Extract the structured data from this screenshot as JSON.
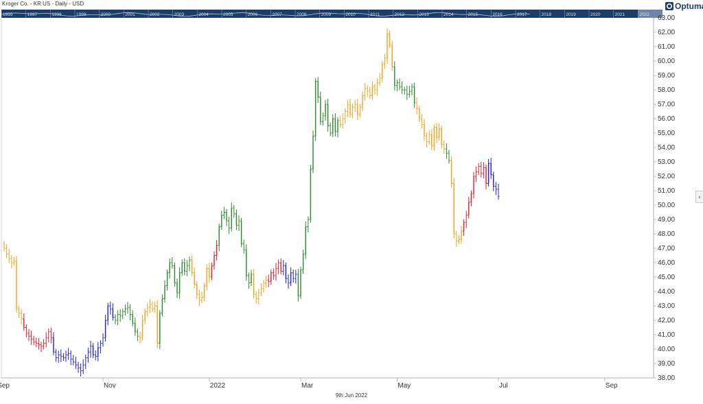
{
  "header": {
    "title": "Kroger Co. - KR:US - Daily - USD"
  },
  "navigator": {
    "years": [
      "1995",
      "1997",
      "1998",
      "1999",
      "2000",
      "2001",
      "2002",
      "2003",
      "2004",
      "2005",
      "2006",
      "2007",
      "2008",
      "2009",
      "2010",
      "2011",
      "2012",
      "2013",
      "2014",
      "2015",
      "2016",
      "2017",
      "2018",
      "2019",
      "2020",
      "2021",
      "2022"
    ],
    "highlighted": "2022"
  },
  "logo": {
    "text": "Optuma",
    "icon": "optuma-logo-icon"
  },
  "footer": {
    "date": "9th Jun 2022"
  },
  "collapse_panel": {
    "icon": "chevron-left-icon",
    "glyph": "‹"
  },
  "colors": {
    "navy": "#1a3d6b",
    "blue": "#1f1fd8",
    "red": "#e21b2c",
    "orange": "#f2a21a",
    "green": "#2b8a2b",
    "grid": "#cccccc"
  },
  "chart_data": {
    "type": "ohlc",
    "ylim": [
      38.0,
      63.0
    ],
    "yticks": [
      "38.00",
      "39.00",
      "40.00",
      "41.00",
      "42.00",
      "43.00",
      "44.00",
      "45.00",
      "46.00",
      "47.00",
      "48.00",
      "49.00",
      "50.00",
      "51.00",
      "52.00",
      "53.00",
      "54.00",
      "55.00",
      "56.00",
      "57.00",
      "58.00",
      "59.00",
      "60.00",
      "61.00",
      "62.00",
      "63.00"
    ],
    "x_tick_labels": [
      "Sep",
      "Nov",
      "2022",
      "Mar",
      "May",
      "Jul",
      "Sep"
    ],
    "x_tick_bar_index": [
      -3,
      40,
      83,
      120,
      159,
      200,
      243
    ],
    "grid": false,
    "legend": "none",
    "color_legend": [
      "blue",
      "red",
      "orange",
      "green"
    ],
    "segments": [
      {
        "color": "orange",
        "closes": [
          47.0,
          46.6,
          46.3,
          46.0,
          46.1,
          42.8,
          42.5,
          42.1
        ]
      },
      {
        "color": "red",
        "closes": [
          41.5,
          41.1,
          40.9,
          40.7,
          40.5,
          40.4,
          40.3,
          40.2,
          40.4,
          40.8,
          41.2,
          40.8
        ]
      },
      {
        "color": "blue",
        "closes": [
          39.8,
          39.4,
          39.6,
          39.5,
          39.4,
          39.6,
          39.7,
          39.3,
          39.1,
          38.9,
          38.7,
          38.5,
          38.9,
          39.4,
          39.8,
          40.2,
          39.6,
          39.5,
          40.1,
          40.4,
          40.8,
          42.0,
          43.0,
          42.8,
          42.2
        ]
      },
      {
        "color": "green",
        "closes": [
          42.0,
          42.4,
          42.3,
          42.6,
          42.8,
          42.9,
          42.4,
          41.8,
          41.2,
          40.9
        ]
      },
      {
        "color": "orange",
        "closes": [
          40.8,
          42.0,
          42.6,
          42.9,
          43.1,
          42.8,
          43.0,
          40.4
        ]
      },
      {
        "color": "green",
        "closes": [
          42.5,
          43.5,
          44.4,
          45.3,
          46.0,
          45.8,
          44.6,
          43.9,
          45.3,
          46.0,
          45.4,
          45.8,
          46.2
        ]
      },
      {
        "color": "orange",
        "closes": [
          45.3,
          44.5,
          43.8,
          43.4,
          43.6,
          44.4,
          45.6,
          45.0
        ]
      },
      {
        "color": "red",
        "closes": [
          45.8,
          46.5,
          47.2
        ]
      },
      {
        "color": "green",
        "closes": [
          48.5,
          49.3,
          49.5,
          48.9,
          48.4,
          49.8,
          49.4,
          48.6,
          48.9,
          47.3,
          46.9
        ]
      },
      {
        "color": "green",
        "closes": [
          45.1,
          44.6,
          45.2
        ]
      },
      {
        "color": "orange",
        "closes": [
          43.8,
          43.5,
          43.9,
          44.2,
          44.6,
          44.8
        ]
      },
      {
        "color": "red",
        "closes": [
          44.7,
          45.3,
          45.1,
          45.6,
          46.0,
          45.4
        ]
      },
      {
        "color": "blue",
        "closes": [
          45.8,
          44.9,
          44.6,
          45.3,
          44.9,
          45.2
        ]
      },
      {
        "color": "green",
        "closes": [
          43.7,
          45.5,
          46.6,
          48.5,
          49.0
        ]
      },
      {
        "color": "green",
        "closes": [
          52.5,
          54.8,
          58.6,
          57.5,
          55.8,
          56.2,
          57.0,
          55.5,
          55.0,
          56.0,
          55.1,
          55.9
        ]
      },
      {
        "color": "orange",
        "closes": [
          55.6,
          56.0,
          56.5,
          57.0,
          56.3,
          56.8,
          57.0,
          56.3,
          56.8,
          57.6,
          58.1,
          57.9,
          57.6,
          58.2,
          58.0,
          58.5,
          58.8,
          59.8,
          60.2,
          61.9,
          61.1,
          59.6
        ]
      },
      {
        "color": "green",
        "closes": [
          58.3,
          58.5,
          58.2,
          58.0,
          58.0,
          57.7,
          57.9,
          58.2,
          57.1
        ]
      },
      {
        "color": "orange",
        "closes": [
          56.7,
          56.0,
          55.6,
          54.8,
          54.4,
          54.9,
          54.1,
          55.4,
          54.7,
          55.3,
          54.2,
          53.9
        ]
      },
      {
        "color": "green",
        "closes": [
          53.6,
          53.1
        ]
      },
      {
        "color": "orange",
        "closes": [
          51.5,
          48.0,
          47.5,
          47.6,
          48.2
        ]
      },
      {
        "color": "red",
        "closes": [
          48.8,
          49.3,
          50.2,
          50.8,
          52.0,
          52.3,
          52.7,
          52.2,
          52.6,
          51.5
        ]
      },
      {
        "color": "blue",
        "closes": [
          52.9,
          52.1,
          51.3,
          51.1,
          50.6
        ]
      }
    ]
  }
}
